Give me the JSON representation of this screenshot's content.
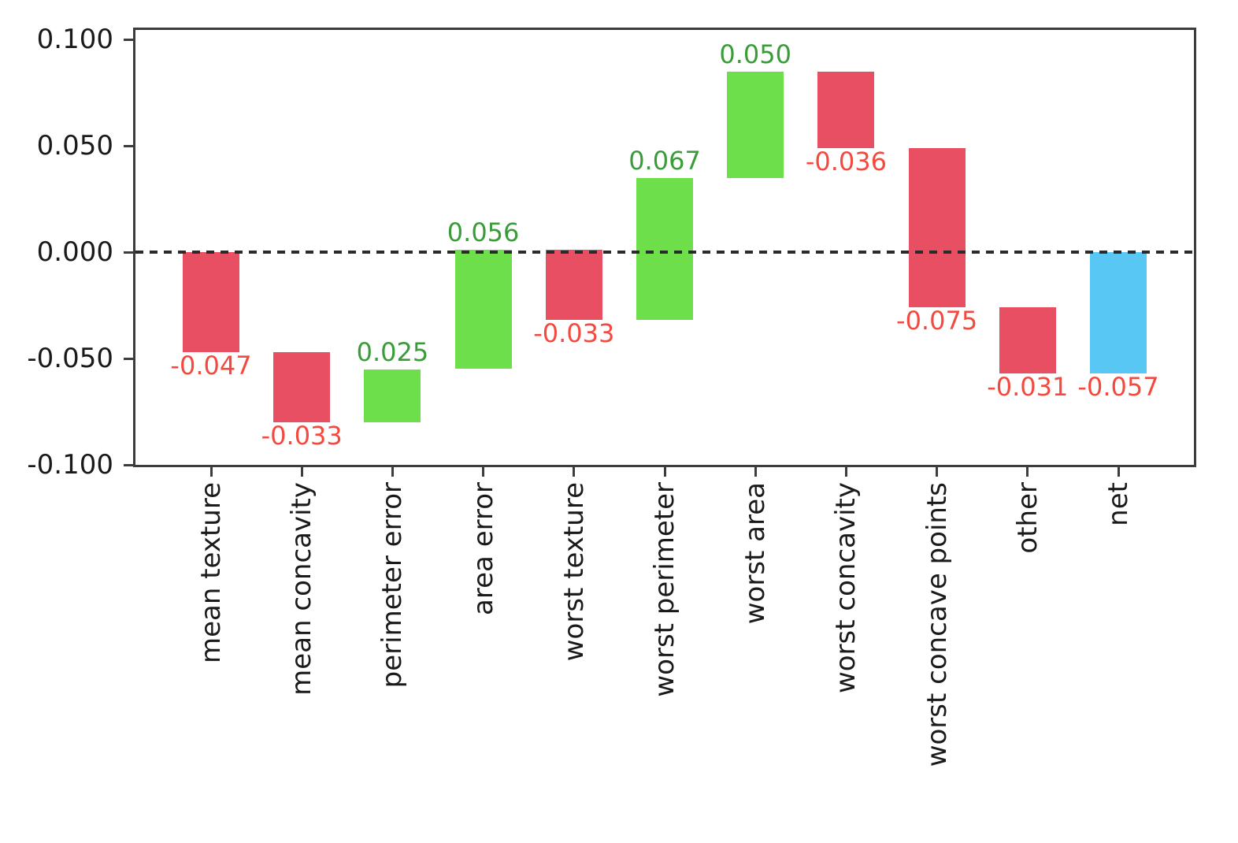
{
  "chart_data": {
    "type": "bar",
    "subtype": "waterfall",
    "title": "",
    "xlabel": "",
    "ylabel": "",
    "grid": false,
    "zero_line": "dashed",
    "legend_position": "none",
    "categories": [
      "mean texture",
      "mean concavity",
      "perimeter error",
      "area error",
      "worst texture",
      "worst perimeter",
      "worst area",
      "worst concavity",
      "worst concave points",
      "other",
      "net"
    ],
    "values": [
      -0.047,
      -0.033,
      0.025,
      0.056,
      -0.033,
      0.067,
      0.05,
      -0.036,
      -0.075,
      -0.031,
      -0.057
    ],
    "bar_kinds": [
      "delta",
      "delta",
      "delta",
      "delta",
      "delta",
      "delta",
      "delta",
      "delta",
      "delta",
      "delta",
      "total"
    ],
    "bar_labels": [
      "-0.047",
      "-0.033",
      "0.025",
      "0.056",
      "-0.033",
      "0.067",
      "0.050",
      "-0.036",
      "-0.075",
      "-0.031",
      "-0.057"
    ],
    "cumulative_start": [
      0.0,
      -0.047,
      -0.08,
      -0.055,
      0.001,
      -0.032,
      0.035,
      0.085,
      0.049,
      -0.026,
      0.0
    ],
    "cumulative_end": [
      -0.047,
      -0.08,
      -0.055,
      0.001,
      -0.032,
      0.035,
      0.085,
      0.049,
      -0.026,
      -0.057,
      -0.057
    ],
    "ytick_labels": [
      "0.100",
      "0.050",
      "0.000",
      "-0.050",
      "-0.100"
    ],
    "ytick_values": [
      0.1,
      0.05,
      0.0,
      -0.05,
      -0.1
    ],
    "ylim": [
      -0.1,
      0.1048
    ],
    "colors": {
      "positive_bar": "#6ddf4b",
      "negative_bar": "#e84f63",
      "total_bar": "#59c7f3",
      "positive_label": "#3a9c39",
      "negative_label": "#f3493f",
      "axis": "#3c3c3c",
      "tick_text": "#1a1a1a",
      "background": "#ffffff"
    }
  }
}
